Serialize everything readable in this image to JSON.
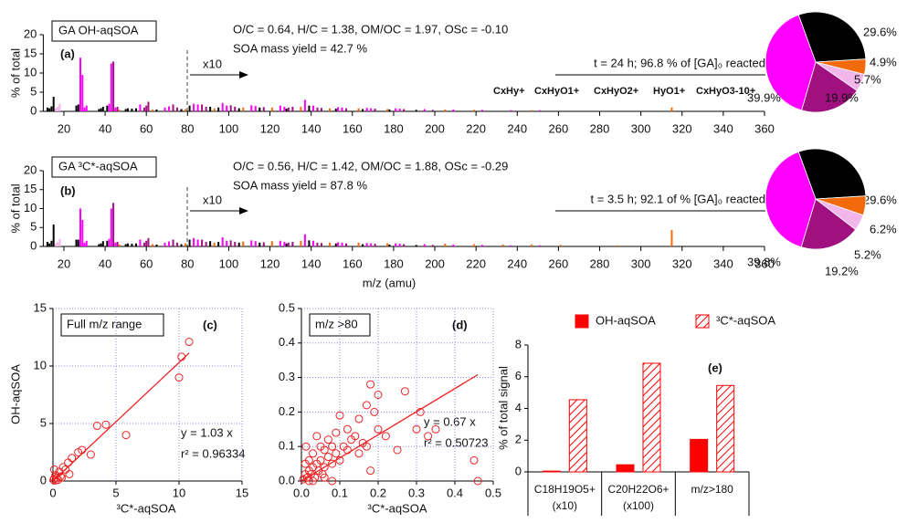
{
  "chart_data": [
    {
      "type": "bar",
      "title": "GA OH-aqSOA",
      "panel": "(a)",
      "stats": "O/C = 0.64, H/C = 1.38, OM/OC = 1.97, OSc = -0.10",
      "yield": "SOA mass yield = 42.7 %",
      "reaction": "t = 24 h; 96.8 % of [GA]₀ reacted",
      "scale_note": "x10",
      "ylabel": "% of total",
      "xlim": [
        10,
        360
      ],
      "xticks": [
        20,
        40,
        60,
        80,
        100,
        120,
        140,
        160,
        180,
        200,
        220,
        240,
        260,
        280,
        300,
        320,
        340,
        360
      ],
      "ylim": [
        0,
        20
      ],
      "yticks": [
        0,
        5,
        10,
        15,
        20
      ],
      "series": [
        {
          "name": "CxHy+",
          "color": "#000000",
          "x": [
            12,
            13,
            14,
            15,
            26,
            27,
            37,
            38,
            39,
            41,
            50,
            51,
            53,
            55,
            65,
            77,
            81,
            91,
            95,
            105,
            115,
            128,
            139,
            152,
            165,
            178,
            191
          ],
          "values": [
            1,
            0.8,
            1.3,
            3.8,
            1.5,
            1.8,
            0.6,
            0.8,
            1.2,
            1.5,
            0.6,
            0.8,
            0.7,
            0.8,
            0.5,
            0.6,
            1.5,
            1.2,
            1,
            0.8,
            1,
            0.7,
            1.5,
            0.7,
            0.6,
            0.5,
            0.4
          ]
        },
        {
          "name": "CxHyO1+",
          "color": "#ff00ff",
          "x": [
            28,
            29,
            30,
            31,
            42,
            43,
            45,
            57,
            69,
            71,
            83,
            85,
            97,
            99,
            111,
            113,
            125,
            127,
            137,
            141,
            153,
            155,
            167,
            169,
            181,
            183,
            195,
            209,
            223,
            237,
            251
          ],
          "values": [
            14,
            9.5,
            1,
            1.5,
            2,
            12.5,
            1,
            1.8,
            1,
            1.3,
            2,
            1.8,
            2.2,
            1.5,
            1.6,
            1.4,
            1.5,
            1.2,
            3,
            1.5,
            1.1,
            1,
            0.9,
            0.8,
            0.8,
            0.7,
            0.6,
            0.5,
            0.4,
            0.3,
            0.3
          ]
        },
        {
          "name": "CxHyO2+",
          "color": "#a0107e",
          "x": [
            44,
            46,
            59,
            60,
            61,
            73,
            75,
            87,
            89,
            101,
            103,
            117,
            129,
            131,
            143,
            145,
            157,
            171,
            185,
            199
          ],
          "values": [
            13,
            1.2,
            1,
            1.5,
            2.5,
            1.8,
            1,
            1.8,
            1.2,
            1.6,
            1.2,
            1.1,
            1,
            1.2,
            1,
            0.9,
            0.8,
            0.7,
            0.6,
            0.4
          ]
        },
        {
          "name": "HyO1+",
          "color": "#f2b6ea",
          "x": [
            16,
            17,
            18
          ],
          "values": [
            0.8,
            1.2,
            2
          ]
        },
        {
          "name": "CxHyO3-10+",
          "color": "#f26a0c",
          "x": [
            47,
            63,
            79,
            93,
            107,
            121,
            135,
            149,
            163,
            177,
            205,
            219,
            247,
            315
          ],
          "values": [
            0.4,
            0.5,
            0.6,
            0.8,
            1,
            1,
            1.2,
            0.8,
            0.8,
            0.6,
            0.5,
            0.4,
            0.3,
            1
          ]
        }
      ]
    },
    {
      "type": "pie",
      "values": [
        29.6,
        4.9,
        5.7,
        19.9,
        39.9
      ],
      "value_labels": [
        "29.6%",
        "4.9%",
        "5.7%",
        "19.9%",
        "39.9%"
      ],
      "colors": [
        "#000000",
        "#f26a0c",
        "#f2b6ea",
        "#a0107e",
        "#ff00ff"
      ]
    },
    {
      "type": "bar",
      "title": "GA ³C*-aqSOA",
      "panel": "(b)",
      "stats": "O/C = 0.56, H/C = 1.42, OM/OC = 1.88, OSc = -0.29",
      "yield": "SOA mass yield = 87.8 %",
      "reaction": "t = 3.5 h; 92.1 of % [GA]₀ reacted",
      "scale_note": "x10",
      "xlabel": "m/z (amu)",
      "ylabel": "% of total",
      "xlim": [
        10,
        360
      ],
      "xticks": [
        20,
        40,
        60,
        80,
        100,
        120,
        140,
        160,
        180,
        200,
        220,
        240,
        260,
        280,
        300,
        320,
        340,
        360
      ],
      "ylim": [
        0,
        20
      ],
      "yticks": [
        0,
        5,
        10,
        15,
        20
      ],
      "series": [
        {
          "name": "CxHy+",
          "color": "#000000",
          "x": [
            12,
            13,
            14,
            15,
            26,
            27,
            37,
            38,
            39,
            41,
            50,
            51,
            53,
            55,
            65,
            77,
            81,
            91,
            95,
            105,
            115,
            128,
            139,
            152,
            165,
            178,
            191
          ],
          "values": [
            1.2,
            0.8,
            1.5,
            5.8,
            1.8,
            1.8,
            0.6,
            0.8,
            1.4,
            1.5,
            0.6,
            0.8,
            0.7,
            0.8,
            0.5,
            0.6,
            1.8,
            1.4,
            1.2,
            1,
            1,
            0.8,
            1.6,
            0.8,
            0.6,
            0.5,
            0.4
          ]
        },
        {
          "name": "CxHyO1+",
          "color": "#ff00ff",
          "x": [
            28,
            29,
            30,
            31,
            42,
            43,
            45,
            57,
            69,
            71,
            83,
            85,
            97,
            99,
            111,
            113,
            125,
            127,
            137,
            141,
            153,
            155,
            167,
            169,
            181,
            183,
            195,
            209,
            223,
            237,
            251
          ],
          "values": [
            10,
            7,
            1,
            1.5,
            2,
            10,
            1,
            1.8,
            1,
            1.3,
            2.2,
            1.8,
            2.4,
            1.5,
            1.6,
            1.4,
            1.5,
            1.2,
            3.2,
            1.5,
            1.1,
            1,
            0.9,
            0.8,
            0.8,
            0.7,
            0.6,
            0.5,
            0.4,
            0.3,
            0.3
          ]
        },
        {
          "name": "CxHyO2+",
          "color": "#a0107e",
          "x": [
            44,
            46,
            59,
            60,
            61,
            73,
            75,
            87,
            89,
            101,
            103,
            117,
            129,
            131,
            143,
            145,
            157,
            171,
            185,
            199
          ],
          "values": [
            11.5,
            1.2,
            1,
            1.5,
            2.2,
            1.8,
            1,
            1.8,
            1.2,
            1.6,
            1.2,
            1.1,
            1,
            1.2,
            1,
            0.9,
            0.8,
            0.7,
            0.6,
            0.4
          ]
        },
        {
          "name": "HyO1+",
          "color": "#f2b6ea",
          "x": [
            16,
            17,
            18
          ],
          "values": [
            0.8,
            1.2,
            2
          ]
        },
        {
          "name": "CxHyO3-10+",
          "color": "#f26a0c",
          "x": [
            47,
            63,
            79,
            93,
            107,
            121,
            135,
            149,
            163,
            177,
            205,
            219,
            233,
            247,
            261,
            289,
            315
          ],
          "values": [
            0.5,
            0.6,
            0.8,
            1,
            1.3,
            1.4,
            1.5,
            1,
            1,
            0.8,
            0.7,
            0.6,
            0.5,
            0.5,
            0.4,
            0.3,
            4.3
          ]
        }
      ]
    },
    {
      "type": "pie",
      "values": [
        29.6,
        6.2,
        5.2,
        19.2,
        39.8
      ],
      "value_labels": [
        "29.6%",
        "6.2%",
        "5.2%",
        "19.2%",
        "39.8%"
      ],
      "colors": [
        "#000000",
        "#f26a0c",
        "#f2b6ea",
        "#a0107e",
        "#ff00ff"
      ]
    },
    {
      "type": "scatter",
      "panel": "(c)",
      "note": "Full m/z range",
      "xlabel": "³C*-aqSOA",
      "ylabel": "OH-aqSOA",
      "xlim": [
        0,
        15
      ],
      "xticks": [
        0,
        5,
        10,
        15
      ],
      "ylim": [
        0,
        15
      ],
      "yticks": [
        0,
        5,
        10,
        15
      ],
      "grid": true,
      "color": "#ee2222",
      "x": [
        0.05,
        0.1,
        0.2,
        0.3,
        0.5,
        0.6,
        0.8,
        1.0,
        1.2,
        1.5,
        2.0,
        2.3,
        3.0,
        3.5,
        4.2,
        5.8,
        0.4,
        0.2,
        1.3,
        10.0,
        10.2,
        10.8,
        0.1,
        0.7
      ],
      "y": [
        0.1,
        0.2,
        0.5,
        0.3,
        0.8,
        0.4,
        1.2,
        1.0,
        1.6,
        2.0,
        2.5,
        2.7,
        2.3,
        4.8,
        4.9,
        4.0,
        0.1,
        0.05,
        0.6,
        9.0,
        10.8,
        12.1,
        1.0,
        0.3
      ],
      "fit": {
        "label": "y = 1.03 x",
        "slope": 1.03
      },
      "r2_label": "r² = 0.96334"
    },
    {
      "type": "scatter",
      "panel": "(d)",
      "note": "m/z >80",
      "xlabel": "³C*-aqSOA",
      "xlim": [
        0,
        0.5
      ],
      "xticks": [
        {
          "value": 0,
          "label": "0.0"
        },
        0.1,
        0.2,
        0.3,
        0.4,
        0.5
      ],
      "ylim": [
        0,
        0.5
      ],
      "yticks": [
        {
          "value": 0,
          "label": "0.0"
        },
        0.1,
        0.2,
        0.3,
        0.4,
        0.5
      ],
      "grid": true,
      "color": "#ee2222",
      "x": [
        0.005,
        0.01,
        0.012,
        0.015,
        0.02,
        0.02,
        0.025,
        0.03,
        0.03,
        0.035,
        0.04,
        0.04,
        0.045,
        0.05,
        0.05,
        0.055,
        0.06,
        0.06,
        0.07,
        0.07,
        0.08,
        0.08,
        0.09,
        0.09,
        0.1,
        0.1,
        0.11,
        0.12,
        0.12,
        0.13,
        0.14,
        0.15,
        0.15,
        0.16,
        0.17,
        0.17,
        0.18,
        0.18,
        0.19,
        0.2,
        0.2,
        0.22,
        0.25,
        0.27,
        0.3,
        0.31,
        0.33,
        0.35,
        0.45,
        0.46,
        0.02,
        0.01,
        0.03,
        0.06,
        0.08
      ],
      "y": [
        0.005,
        0.02,
        0.1,
        0.01,
        0.03,
        0.06,
        0.02,
        0.04,
        0.08,
        0.01,
        0.05,
        0.13,
        0.03,
        0.06,
        0.1,
        0.02,
        0.04,
        0.09,
        0.07,
        0.12,
        0.05,
        0.1,
        0.08,
        0.14,
        0.06,
        0.19,
        0.1,
        0.09,
        0.15,
        0.12,
        0.13,
        0.08,
        0.18,
        0.11,
        0.1,
        0.22,
        0.03,
        0.28,
        0.2,
        0.15,
        0.25,
        0.13,
        0.09,
        0.26,
        0.15,
        0.2,
        0.13,
        0.15,
        0.06,
        0.0,
        0.0,
        0.05,
        0.0,
        0.01,
        0.0
      ],
      "fit": {
        "label": "y = 0.67 x",
        "slope": 0.67
      },
      "r2_label": "r² = 0.50723"
    },
    {
      "type": "groupedbar",
      "panel": "(e)",
      "ylabel": "% of total signal",
      "categories": [
        "C18H19O5+",
        "C20H22O6+",
        "m/z>180"
      ],
      "category_notes": [
        "(x10)",
        "(x100)",
        null
      ],
      "ylim": [
        0,
        8
      ],
      "yticks": [
        0,
        2,
        4,
        6,
        8
      ],
      "series": [
        {
          "name": "OH-aqSOA",
          "color": "#ff0000",
          "hatch": false,
          "values": [
            0.05,
            0.45,
            2.05
          ]
        },
        {
          "name": "³C*-aqSOA",
          "color": "#ff0000",
          "hatch": true,
          "values": [
            4.55,
            6.85,
            5.45
          ]
        }
      ]
    }
  ]
}
